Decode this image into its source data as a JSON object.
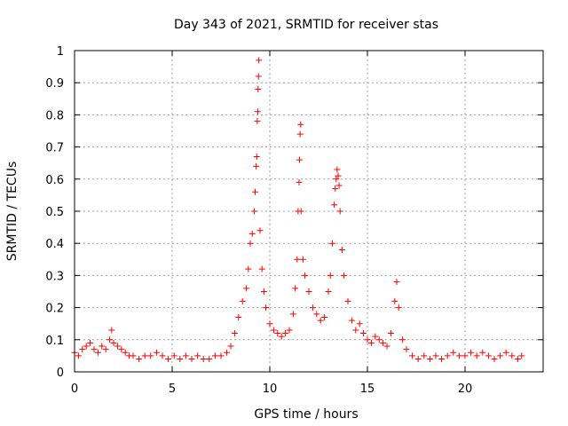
{
  "chart_data": {
    "type": "scatter",
    "title": "Day 343 of 2021, SRMTID for receiver stas",
    "xlabel": "GPS time / hours",
    "ylabel": "SRMTID / TECUs",
    "xlim": [
      0,
      24
    ],
    "ylim": [
      0,
      1
    ],
    "grid": true,
    "marker": "+",
    "marker_color": "#ff0000",
    "x_ticks": [
      0,
      5,
      10,
      15,
      20
    ],
    "x_tick_labels": [
      "0",
      "5",
      "10",
      "15",
      "20"
    ],
    "y_ticks": [
      0,
      0.1,
      0.2,
      0.3,
      0.4,
      0.5,
      0.6,
      0.7,
      0.8,
      0.9,
      1
    ],
    "y_tick_labels": [
      "0",
      "0.1",
      "0.2",
      "0.3",
      "0.4",
      "0.5",
      "0.6",
      "0.7",
      "0.8",
      "0.9",
      "1"
    ],
    "series": [
      {
        "name": "SRMTID",
        "points": [
          [
            0.0,
            0.06
          ],
          [
            0.2,
            0.05
          ],
          [
            0.4,
            0.07
          ],
          [
            0.6,
            0.08
          ],
          [
            0.8,
            0.09
          ],
          [
            1.0,
            0.07
          ],
          [
            1.2,
            0.06
          ],
          [
            1.4,
            0.08
          ],
          [
            1.6,
            0.07
          ],
          [
            1.8,
            0.1
          ],
          [
            1.9,
            0.13
          ],
          [
            2.0,
            0.09
          ],
          [
            2.2,
            0.08
          ],
          [
            2.4,
            0.07
          ],
          [
            2.6,
            0.06
          ],
          [
            2.8,
            0.05
          ],
          [
            3.0,
            0.05
          ],
          [
            3.3,
            0.04
          ],
          [
            3.6,
            0.05
          ],
          [
            3.9,
            0.05
          ],
          [
            4.2,
            0.06
          ],
          [
            4.5,
            0.05
          ],
          [
            4.8,
            0.04
          ],
          [
            5.1,
            0.05
          ],
          [
            5.4,
            0.04
          ],
          [
            5.7,
            0.05
          ],
          [
            6.0,
            0.04
          ],
          [
            6.3,
            0.05
          ],
          [
            6.6,
            0.04
          ],
          [
            6.9,
            0.04
          ],
          [
            7.2,
            0.05
          ],
          [
            7.5,
            0.05
          ],
          [
            7.8,
            0.06
          ],
          [
            8.0,
            0.08
          ],
          [
            8.2,
            0.12
          ],
          [
            8.4,
            0.17
          ],
          [
            8.6,
            0.22
          ],
          [
            8.8,
            0.26
          ],
          [
            8.9,
            0.32
          ],
          [
            9.0,
            0.4
          ],
          [
            9.1,
            0.43
          ],
          [
            9.2,
            0.5
          ],
          [
            9.25,
            0.56
          ],
          [
            9.3,
            0.64
          ],
          [
            9.33,
            0.67
          ],
          [
            9.36,
            0.78
          ],
          [
            9.38,
            0.81
          ],
          [
            9.4,
            0.88
          ],
          [
            9.42,
            0.92
          ],
          [
            9.44,
            0.97
          ],
          [
            9.5,
            0.44
          ],
          [
            9.6,
            0.32
          ],
          [
            9.7,
            0.25
          ],
          [
            9.8,
            0.2
          ],
          [
            10.0,
            0.15
          ],
          [
            10.2,
            0.13
          ],
          [
            10.4,
            0.12
          ],
          [
            10.6,
            0.11
          ],
          [
            10.8,
            0.12
          ],
          [
            11.0,
            0.13
          ],
          [
            11.2,
            0.18
          ],
          [
            11.3,
            0.26
          ],
          [
            11.4,
            0.35
          ],
          [
            11.45,
            0.5
          ],
          [
            11.5,
            0.59
          ],
          [
            11.52,
            0.66
          ],
          [
            11.55,
            0.74
          ],
          [
            11.58,
            0.77
          ],
          [
            11.6,
            0.5
          ],
          [
            11.7,
            0.35
          ],
          [
            11.8,
            0.3
          ],
          [
            12.0,
            0.25
          ],
          [
            12.2,
            0.2
          ],
          [
            12.4,
            0.18
          ],
          [
            12.6,
            0.16
          ],
          [
            12.8,
            0.17
          ],
          [
            13.0,
            0.25
          ],
          [
            13.1,
            0.3
          ],
          [
            13.2,
            0.4
          ],
          [
            13.3,
            0.52
          ],
          [
            13.35,
            0.57
          ],
          [
            13.4,
            0.6
          ],
          [
            13.45,
            0.63
          ],
          [
            13.5,
            0.61
          ],
          [
            13.55,
            0.58
          ],
          [
            13.6,
            0.5
          ],
          [
            13.7,
            0.38
          ],
          [
            13.8,
            0.3
          ],
          [
            14.0,
            0.22
          ],
          [
            14.2,
            0.16
          ],
          [
            14.4,
            0.13
          ],
          [
            14.6,
            0.15
          ],
          [
            14.8,
            0.12
          ],
          [
            15.0,
            0.1
          ],
          [
            15.2,
            0.09
          ],
          [
            15.4,
            0.11
          ],
          [
            15.6,
            0.1
          ],
          [
            15.8,
            0.09
          ],
          [
            16.0,
            0.08
          ],
          [
            16.2,
            0.12
          ],
          [
            16.4,
            0.22
          ],
          [
            16.5,
            0.28
          ],
          [
            16.6,
            0.2
          ],
          [
            16.8,
            0.1
          ],
          [
            17.0,
            0.07
          ],
          [
            17.3,
            0.05
          ],
          [
            17.6,
            0.04
          ],
          [
            17.9,
            0.05
          ],
          [
            18.2,
            0.04
          ],
          [
            18.5,
            0.05
          ],
          [
            18.8,
            0.04
          ],
          [
            19.1,
            0.05
          ],
          [
            19.4,
            0.06
          ],
          [
            19.7,
            0.05
          ],
          [
            20.0,
            0.05
          ],
          [
            20.3,
            0.06
          ],
          [
            20.6,
            0.05
          ],
          [
            20.9,
            0.06
          ],
          [
            21.2,
            0.05
          ],
          [
            21.5,
            0.04
          ],
          [
            21.8,
            0.05
          ],
          [
            22.1,
            0.06
          ],
          [
            22.4,
            0.05
          ],
          [
            22.7,
            0.04
          ],
          [
            22.9,
            0.05
          ]
        ]
      }
    ]
  }
}
